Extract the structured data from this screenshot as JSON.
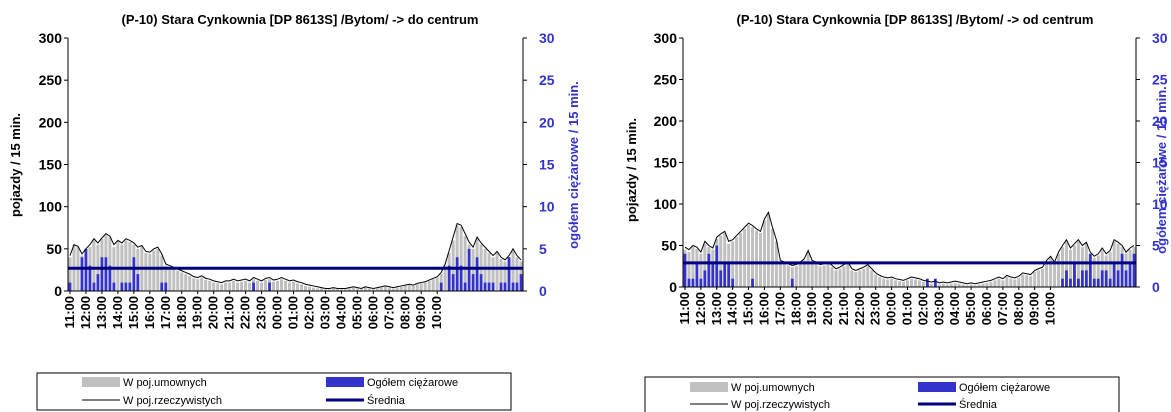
{
  "colors": {
    "gross_bar": "#c0c0c0",
    "truck_bar": "#3333cc",
    "real_line": "#000000",
    "mean_line": "#000080",
    "right_axis_text": "#3333cc"
  },
  "legend": {
    "gross": "W poj.umownych",
    "trucks": "Ogółem ciężarowe",
    "real": "W poj.rzeczywistych",
    "mean": "Średnia"
  },
  "chart_data": [
    {
      "type": "bar",
      "title": "(P-10) Stara Cynkownia [DP 8613S] /Bytom/ -> do centrum",
      "ylabel": "pojazdy / 15 min.",
      "y2label": "ogółem ciężarowe / 15 min.",
      "ylim": [
        0,
        300
      ],
      "y2lim": [
        0,
        30
      ],
      "yticks": [
        "0",
        "50",
        "100",
        "150",
        "200",
        "250",
        "300"
      ],
      "y2ticks": [
        "0",
        "5",
        "10",
        "15",
        "20",
        "25",
        "30"
      ],
      "x_tick_labels": [
        "11:00",
        "12:00",
        "13:00",
        "14:00",
        "15:00",
        "16:00",
        "17:00",
        "18:00",
        "19:00",
        "20:00",
        "21:00",
        "22:00",
        "23:00",
        "00:00",
        "01:00",
        "02:00",
        "03:00",
        "04:00",
        "05:00",
        "06:00",
        "07:00",
        "08:00",
        "09:00",
        "10:00"
      ],
      "series": [
        {
          "name": "W poj.umownych",
          "type": "bar",
          "axis": "left",
          "values": [
            40,
            55,
            52,
            42,
            48,
            52,
            60,
            55,
            62,
            66,
            64,
            52,
            58,
            55,
            60,
            58,
            55,
            50,
            52,
            45,
            44,
            48,
            50,
            42,
            30,
            28,
            26,
            24,
            22,
            20,
            18,
            15,
            14,
            16,
            13,
            12,
            10,
            9,
            8,
            10,
            10,
            12,
            10,
            11,
            12,
            10,
            14,
            12,
            10,
            13,
            14,
            11,
            12,
            14,
            12,
            10,
            11,
            9,
            8,
            6,
            5,
            4,
            3,
            3,
            2,
            2,
            3,
            2,
            2,
            2,
            3,
            4,
            3,
            2,
            4,
            3,
            2,
            3,
            4,
            5,
            4,
            3,
            4,
            5,
            6,
            7,
            6,
            8,
            9,
            10,
            12,
            14,
            16,
            20,
            30,
            45,
            60,
            78,
            76,
            65,
            55,
            50,
            62,
            55,
            50,
            45,
            40,
            45,
            38,
            35,
            40,
            48,
            40,
            35
          ]
        },
        {
          "name": "W poj.rzeczywistych",
          "type": "line",
          "axis": "left",
          "values": [
            42,
            55,
            53,
            44,
            50,
            55,
            62,
            57,
            63,
            68,
            65,
            55,
            60,
            57,
            62,
            60,
            57,
            52,
            54,
            47,
            46,
            50,
            52,
            44,
            32,
            30,
            28,
            26,
            24,
            22,
            20,
            17,
            16,
            18,
            15,
            14,
            12,
            11,
            10,
            12,
            12,
            14,
            12,
            13,
            14,
            12,
            16,
            14,
            12,
            15,
            16,
            13,
            14,
            16,
            14,
            12,
            13,
            11,
            10,
            8,
            7,
            6,
            5,
            4,
            3,
            3,
            4,
            3,
            3,
            3,
            4,
            5,
            4,
            3,
            5,
            4,
            3,
            4,
            5,
            6,
            5,
            4,
            5,
            6,
            7,
            8,
            7,
            9,
            10,
            11,
            13,
            15,
            17,
            22,
            32,
            48,
            64,
            80,
            78,
            68,
            58,
            52,
            64,
            57,
            52,
            47,
            42,
            47,
            40,
            37,
            42,
            50,
            42,
            37
          ]
        },
        {
          "name": "Ogółem ciężarowe",
          "type": "bar",
          "axis": "right",
          "values": [
            1,
            0,
            0,
            4,
            5,
            3,
            1,
            2,
            4,
            4,
            3,
            1,
            0,
            1,
            1,
            1,
            4,
            2,
            0,
            0,
            0,
            0,
            0,
            1,
            1,
            0,
            0,
            0,
            0,
            0,
            0,
            0,
            0,
            0,
            0,
            0,
            0,
            0,
            0,
            0,
            0,
            0,
            0,
            0,
            0,
            0,
            1,
            0,
            0,
            0,
            1,
            0,
            0,
            0,
            0,
            0,
            0,
            0,
            0,
            0,
            0,
            0,
            0,
            0,
            0,
            0,
            0,
            0,
            0,
            0,
            0,
            0,
            0,
            0,
            0,
            0,
            0,
            0,
            0,
            0,
            0,
            0,
            0,
            0,
            0,
            0,
            0,
            0,
            0,
            0,
            0,
            0,
            0,
            1,
            0,
            3,
            2,
            4,
            3,
            1,
            5,
            2,
            4,
            2,
            1,
            1,
            1,
            0,
            1,
            1,
            4,
            1,
            1,
            2
          ]
        },
        {
          "name": "Średnia",
          "type": "line",
          "axis": "left",
          "values": [
            27
          ]
        }
      ]
    },
    {
      "type": "bar",
      "title": "(P-10) Stara Cynkownia [DP 8613S] /Bytom/ -> od centrum",
      "ylabel": "pojazdy / 15 min.",
      "y2label": "ogółem ciężarowe / 15 min.",
      "ylim": [
        0,
        300
      ],
      "y2lim": [
        0,
        30
      ],
      "yticks": [
        "0",
        "50",
        "100",
        "150",
        "200",
        "250",
        "300"
      ],
      "y2ticks": [
        "0",
        "5",
        "10",
        "15",
        "20",
        "25",
        "30"
      ],
      "x_tick_labels": [
        "11:00",
        "12:00",
        "13:00",
        "14:00",
        "15:00",
        "16:00",
        "17:00",
        "18:00",
        "19:00",
        "20:00",
        "21:00",
        "22:00",
        "23:00",
        "00:00",
        "01:00",
        "02:00",
        "03:00",
        "04:00",
        "05:00",
        "06:00",
        "07:00",
        "08:00",
        "09:00",
        "10:00"
      ],
      "series": [
        {
          "name": "W poj.umownych",
          "type": "bar",
          "axis": "left",
          "values": [
            45,
            42,
            48,
            46,
            40,
            52,
            48,
            45,
            58,
            62,
            65,
            52,
            55,
            60,
            65,
            70,
            75,
            72,
            68,
            65,
            80,
            88,
            70,
            55,
            30,
            28,
            26,
            24,
            25,
            28,
            32,
            42,
            30,
            28,
            25,
            26,
            28,
            24,
            20,
            22,
            25,
            28,
            20,
            18,
            20,
            22,
            25,
            20,
            15,
            12,
            10,
            9,
            10,
            8,
            7,
            6,
            8,
            10,
            9,
            8,
            6,
            5,
            4,
            5,
            3,
            4,
            3,
            4,
            5,
            4,
            3,
            2,
            3,
            2,
            3,
            4,
            5,
            6,
            8,
            10,
            8,
            12,
            10,
            9,
            11,
            15,
            14,
            13,
            18,
            20,
            22,
            30,
            35,
            28,
            40,
            48,
            55,
            45,
            50,
            55,
            48,
            52,
            40,
            35,
            38,
            45,
            38,
            42,
            55,
            52,
            48,
            40,
            45,
            48
          ]
        },
        {
          "name": "W poj.rzeczywistych",
          "type": "line",
          "axis": "left",
          "values": [
            48,
            45,
            50,
            48,
            42,
            55,
            50,
            47,
            60,
            64,
            67,
            55,
            57,
            62,
            67,
            72,
            77,
            74,
            70,
            67,
            82,
            90,
            72,
            57,
            32,
            30,
            28,
            26,
            27,
            30,
            34,
            44,
            32,
            30,
            27,
            28,
            30,
            26,
            22,
            24,
            27,
            30,
            22,
            20,
            22,
            24,
            27,
            22,
            17,
            14,
            12,
            11,
            12,
            10,
            9,
            8,
            10,
            12,
            11,
            10,
            8,
            7,
            6,
            7,
            5,
            6,
            5,
            6,
            7,
            6,
            5,
            4,
            5,
            4,
            5,
            6,
            7,
            8,
            10,
            12,
            10,
            14,
            12,
            11,
            13,
            17,
            16,
            15,
            20,
            22,
            24,
            32,
            37,
            30,
            42,
            50,
            57,
            47,
            52,
            57,
            50,
            54,
            42,
            37,
            40,
            47,
            40,
            44,
            57,
            54,
            50,
            42,
            47,
            50
          ]
        },
        {
          "name": "Ogółem ciężarowe",
          "type": "bar",
          "axis": "right",
          "values": [
            4,
            1,
            1,
            3,
            1,
            2,
            4,
            3,
            5,
            2,
            3,
            3,
            1,
            0,
            0,
            0,
            0,
            1,
            0,
            0,
            0,
            0,
            0,
            0,
            0,
            0,
            0,
            1,
            0,
            0,
            0,
            0,
            0,
            0,
            0,
            0,
            0,
            0,
            0,
            0,
            0,
            0,
            0,
            0,
            0,
            0,
            0,
            0,
            0,
            0,
            0,
            0,
            0,
            0,
            0,
            0,
            0,
            0,
            0,
            0,
            0,
            1,
            0,
            1,
            0,
            0,
            0,
            0,
            0,
            0,
            0,
            0,
            0,
            0,
            0,
            0,
            0,
            0,
            0,
            0,
            0,
            0,
            0,
            0,
            0,
            0,
            0,
            0,
            0,
            0,
            0,
            0,
            0,
            0,
            0,
            1,
            2,
            1,
            3,
            1,
            2,
            2,
            4,
            1,
            1,
            2,
            2,
            1,
            3,
            2,
            4,
            2,
            3,
            4
          ]
        },
        {
          "name": "Średnia",
          "type": "line",
          "axis": "left",
          "values": [
            29
          ]
        }
      ]
    }
  ]
}
